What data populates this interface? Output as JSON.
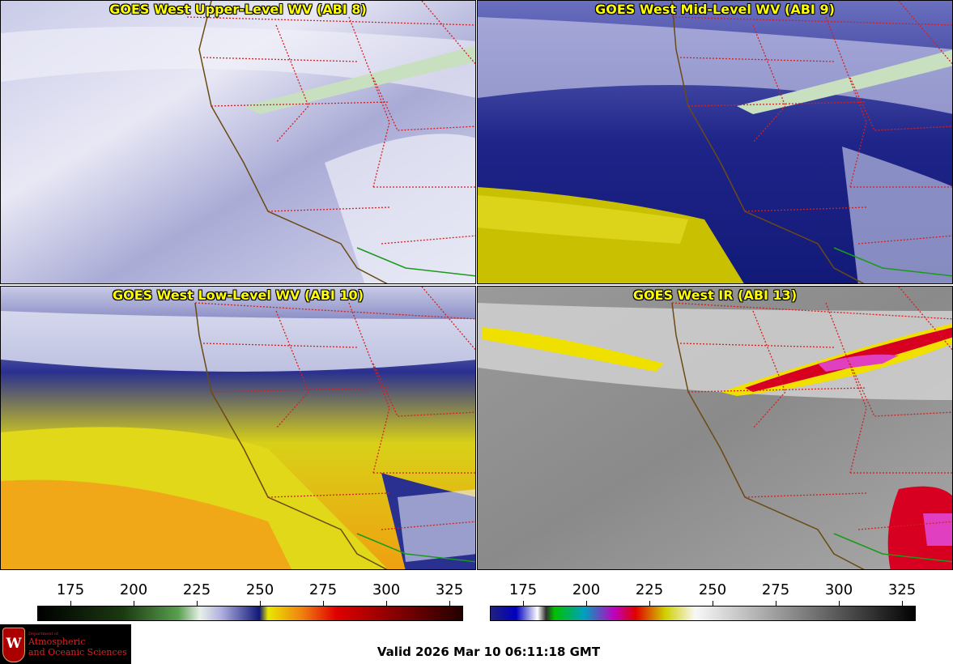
{
  "panels": [
    {
      "id": "upper",
      "title": "GOES West Upper-Level WV (ABI 8)"
    },
    {
      "id": "mid",
      "title": "GOES West Mid-Level WV (ABI 9)"
    },
    {
      "id": "low",
      "title": "GOES West Low-Level WV (ABI 10)"
    },
    {
      "id": "ir",
      "title": "GOES West IR (ABI 13)"
    }
  ],
  "colorbars": {
    "ticks": [
      "175",
      "200",
      "225",
      "250",
      "275",
      "300",
      "325"
    ],
    "wv_range": [
      163,
      333
    ],
    "ir_range": [
      163,
      333
    ]
  },
  "valid_time": "Valid 2026 Mar 10 06:11:18 GMT",
  "logo": {
    "dept": "Department of",
    "line1": "Atmospheric",
    "line2": "and Oceanic Sciences",
    "crest": "W"
  },
  "colors": {
    "title": "#ffff00",
    "borders": "#d42020",
    "coast": "#6b4a14",
    "mexico": "#1a9a1a"
  }
}
